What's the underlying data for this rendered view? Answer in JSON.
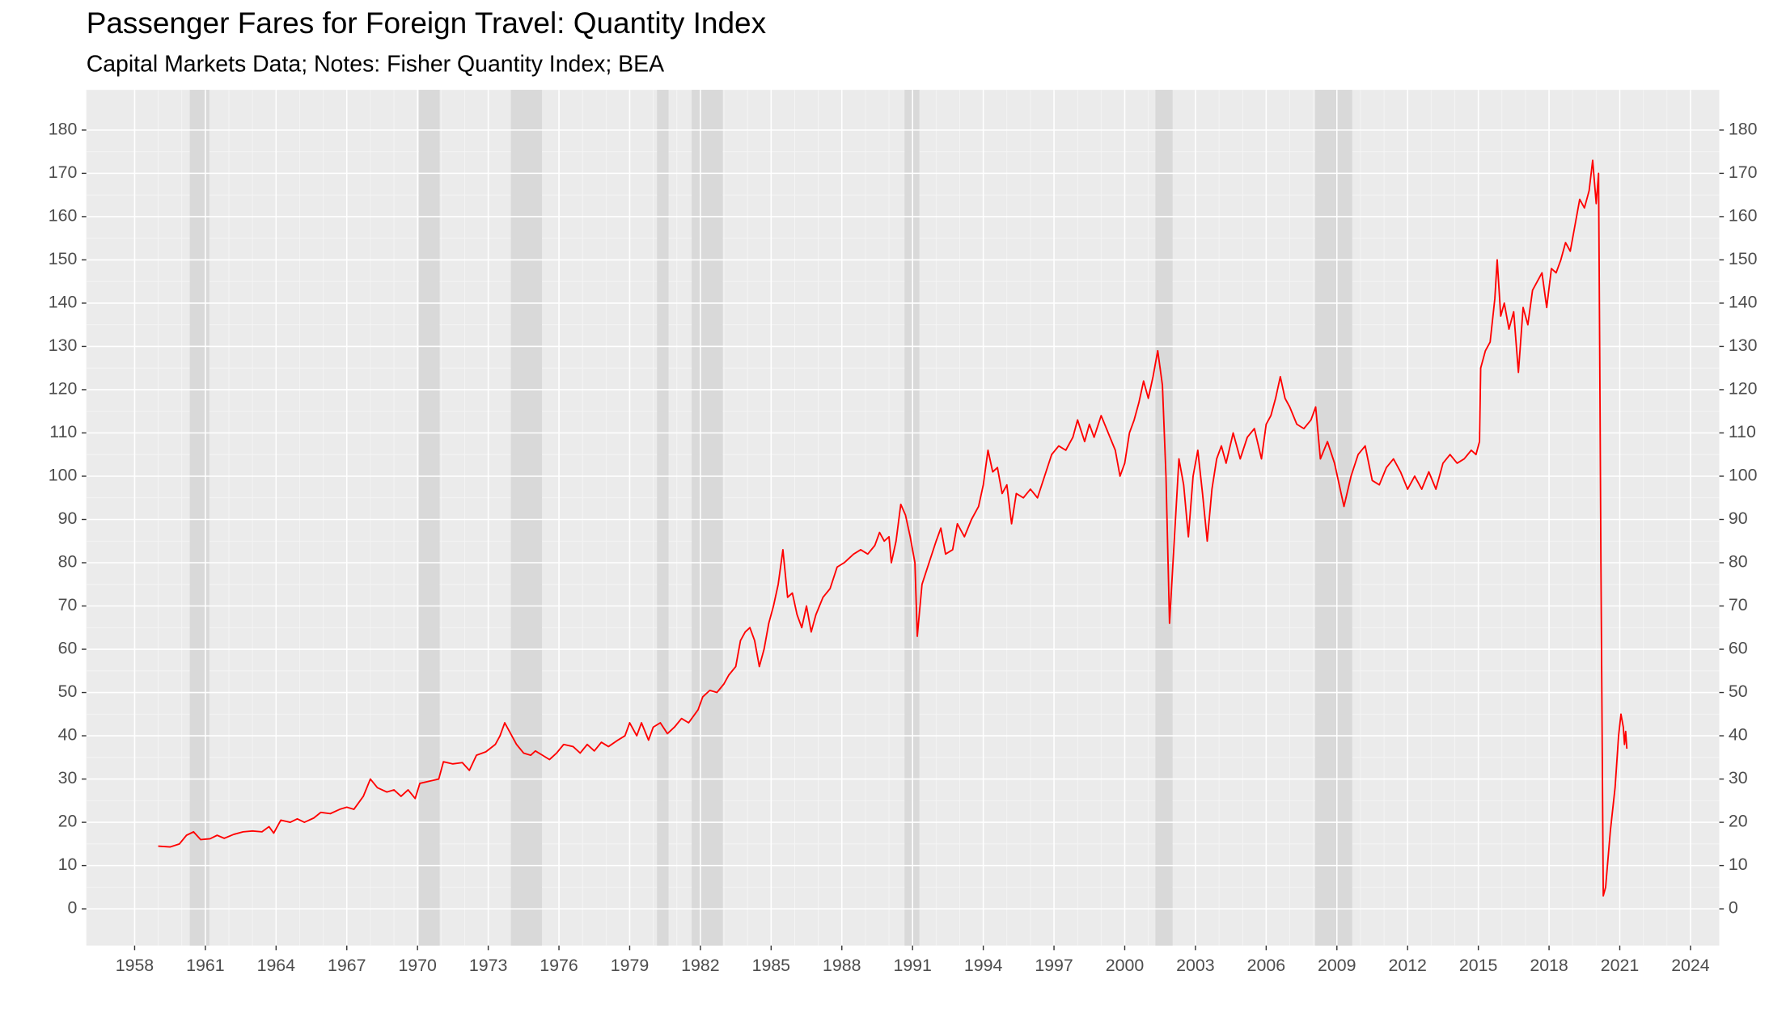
{
  "chart_data": {
    "type": "line",
    "title": "Passenger Fares for Foreign Travel: Quantity Index",
    "subtitle": "Capital Markets Data; Notes: Fisher Quantity Index; BEA",
    "xlim": [
      1955.95,
      2025.22
    ],
    "ylim": [
      -8.5,
      189.3
    ],
    "xticks": [
      1958,
      1961,
      1964,
      1967,
      1970,
      1973,
      1976,
      1979,
      1982,
      1985,
      1988,
      1991,
      1994,
      1997,
      2000,
      2003,
      2006,
      2009,
      2012,
      2015,
      2018,
      2021,
      2024
    ],
    "yticks": [
      0,
      10,
      20,
      30,
      40,
      50,
      60,
      70,
      80,
      90,
      100,
      110,
      120,
      130,
      140,
      150,
      160,
      170,
      180
    ],
    "grid": true,
    "secondary_axis": true,
    "recession_color": "#d9d9d9",
    "recessions": [
      [
        1960.34,
        1961.17
      ],
      [
        1970.06,
        1970.94
      ],
      [
        1973.96,
        1975.28
      ],
      [
        1980.16,
        1980.65
      ],
      [
        1981.63,
        1982.95
      ],
      [
        1990.66,
        1991.29
      ],
      [
        2001.3,
        2002.03
      ],
      [
        2008.08,
        2009.65
      ]
    ],
    "series": [
      {
        "name": "Quantity Index",
        "color": "#ff0000",
        "x": [
          1959.0,
          1959.5,
          1959.9,
          1960.2,
          1960.5,
          1960.8,
          1961.2,
          1961.5,
          1961.8,
          1962.2,
          1962.6,
          1963.0,
          1963.4,
          1963.7,
          1963.9,
          1964.2,
          1964.6,
          1964.9,
          1965.2,
          1965.6,
          1965.9,
          1966.3,
          1966.7,
          1967.0,
          1967.3,
          1967.7,
          1968.0,
          1968.3,
          1968.7,
          1969.0,
          1969.3,
          1969.6,
          1969.9,
          1970.1,
          1970.5,
          1970.9,
          1971.1,
          1971.5,
          1971.9,
          1972.2,
          1972.5,
          1972.9,
          1973.3,
          1973.5,
          1973.7,
          1973.9,
          1974.2,
          1974.5,
          1974.8,
          1975.0,
          1975.3,
          1975.6,
          1975.9,
          1976.2,
          1976.6,
          1976.9,
          1977.2,
          1977.5,
          1977.8,
          1978.1,
          1978.5,
          1978.8,
          1979.0,
          1979.3,
          1979.5,
          1979.8,
          1980.0,
          1980.3,
          1980.6,
          1980.9,
          1981.2,
          1981.5,
          1981.9,
          1982.1,
          1982.4,
          1982.7,
          1983.0,
          1983.2,
          1983.5,
          1983.7,
          1983.9,
          1984.1,
          1984.3,
          1984.5,
          1984.7,
          1984.9,
          1985.1,
          1985.3,
          1985.5,
          1985.7,
          1985.9,
          1986.1,
          1986.3,
          1986.5,
          1986.7,
          1986.9,
          1987.2,
          1987.5,
          1987.8,
          1988.1,
          1988.5,
          1988.8,
          1989.1,
          1989.4,
          1989.6,
          1989.8,
          1990.0,
          1990.1,
          1990.3,
          1990.5,
          1990.7,
          1990.9,
          1991.1,
          1991.2,
          1991.4,
          1991.7,
          1992.0,
          1992.2,
          1992.4,
          1992.7,
          1992.9,
          1993.2,
          1993.5,
          1993.8,
          1994.0,
          1994.2,
          1994.4,
          1994.6,
          1994.8,
          1995.0,
          1995.2,
          1995.4,
          1995.7,
          1996.0,
          1996.3,
          1996.6,
          1996.9,
          1997.2,
          1997.5,
          1997.8,
          1998.0,
          1998.3,
          1998.5,
          1998.7,
          1999.0,
          1999.3,
          1999.6,
          1999.8,
          2000.0,
          2000.2,
          2000.4,
          2000.6,
          2000.8,
          2001.0,
          2001.2,
          2001.4,
          2001.6,
          2001.75,
          2001.9,
          2002.1,
          2002.3,
          2002.5,
          2002.7,
          2002.9,
          2003.1,
          2003.3,
          2003.5,
          2003.7,
          2003.9,
          2004.1,
          2004.3,
          2004.6,
          2004.9,
          2005.2,
          2005.5,
          2005.8,
          2006.0,
          2006.2,
          2006.4,
          2006.6,
          2006.8,
          2007.0,
          2007.3,
          2007.6,
          2007.9,
          2008.1,
          2008.3,
          2008.6,
          2008.9,
          2009.1,
          2009.3,
          2009.6,
          2009.9,
          2010.2,
          2010.5,
          2010.8,
          2011.1,
          2011.4,
          2011.7,
          2012.0,
          2012.3,
          2012.6,
          2012.9,
          2013.2,
          2013.5,
          2013.8,
          2014.1,
          2014.4,
          2014.7,
          2014.9,
          2015.05,
          2015.1,
          2015.3,
          2015.5,
          2015.7,
          2015.8,
          2015.95,
          2016.1,
          2016.3,
          2016.5,
          2016.7,
          2016.9,
          2017.1,
          2017.3,
          2017.5,
          2017.7,
          2017.9,
          2018.1,
          2018.3,
          2018.5,
          2018.7,
          2018.9,
          2019.1,
          2019.3,
          2019.5,
          2019.7,
          2019.85,
          2020.0,
          2020.1,
          2020.15,
          2020.2,
          2020.3,
          2020.4,
          2020.6,
          2020.8,
          2020.95,
          2021.05,
          2021.15,
          2021.2,
          2021.25,
          2021.3
        ],
        "values": [
          14.5,
          14.3,
          15,
          17,
          17.8,
          16,
          16.2,
          17,
          16.3,
          17.2,
          17.8,
          18,
          17.8,
          19,
          17.5,
          20.5,
          20,
          20.8,
          20,
          21,
          22.3,
          22,
          23,
          23.5,
          23,
          26,
          30,
          28,
          27,
          27.5,
          26,
          27.5,
          25.5,
          29,
          29.5,
          30,
          34,
          33.5,
          33.8,
          32,
          35.5,
          36.3,
          38,
          40,
          43,
          41,
          38,
          36,
          35.5,
          36.5,
          35.5,
          34.5,
          36,
          38,
          37.5,
          36,
          38,
          36.5,
          38.5,
          37.5,
          39,
          40,
          43,
          40,
          43,
          39,
          42,
          43,
          40.5,
          42,
          44,
          43,
          46,
          49,
          50.5,
          50,
          52,
          54,
          56,
          62,
          64,
          65,
          62,
          56,
          60,
          66,
          70,
          75,
          83,
          72,
          73,
          68,
          65,
          70,
          64,
          68,
          72,
          74,
          79,
          80,
          82,
          83,
          82,
          84,
          87,
          85,
          86,
          80,
          85,
          93.5,
          91,
          86,
          80,
          63,
          75,
          80,
          85,
          88,
          82,
          83,
          89,
          86,
          90,
          93,
          98,
          106,
          101,
          102,
          96,
          98,
          89,
          96,
          95,
          97,
          95,
          100,
          105,
          107,
          106,
          109,
          113,
          108,
          112,
          109,
          114,
          110,
          106,
          100,
          103,
          110,
          113,
          117,
          122,
          118,
          123,
          129,
          121,
          100,
          66,
          85,
          104,
          98,
          86,
          100,
          106,
          96,
          85,
          97,
          104,
          107,
          103,
          110,
          104,
          109,
          111,
          104,
          112,
          114,
          118,
          123,
          118,
          116,
          112,
          111,
          113,
          116,
          104,
          108,
          103,
          98,
          93,
          100,
          105,
          107,
          99,
          98,
          102,
          104,
          101,
          97,
          100,
          97,
          101,
          97,
          103,
          105,
          103,
          104,
          106,
          105,
          108,
          125,
          129,
          131,
          141,
          150,
          137,
          140,
          134,
          138,
          124,
          139,
          135,
          143,
          145,
          147,
          139,
          148,
          147,
          150,
          154,
          152,
          158,
          164,
          162,
          166,
          173,
          163,
          170,
          128,
          80,
          3,
          5,
          18,
          28,
          40,
          45,
          42,
          38,
          41,
          37
        ]
      }
    ]
  }
}
